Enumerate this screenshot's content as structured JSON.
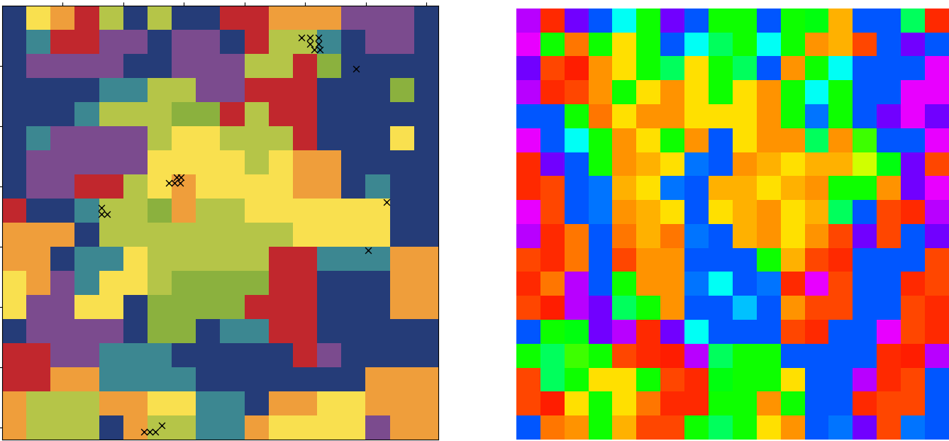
{
  "chart_data": [
    {
      "type": "categorical_heatmap",
      "colors": [
        "#253c78",
        "#7b4b8e",
        "#3c8791",
        "#b5c548",
        "#8bb13e",
        "#f9e04f",
        "#ef9e3b",
        "#c1272d"
      ],
      "cells": [
        [
          0,
          5,
          6,
          7,
          3,
          0,
          3,
          0,
          0,
          7,
          7,
          6,
          6,
          6,
          1,
          1,
          1,
          0
        ],
        [
          0,
          2,
          7,
          7,
          1,
          1,
          0,
          1,
          1,
          0,
          7,
          3,
          3,
          2,
          0,
          1,
          1,
          0
        ],
        [
          0,
          1,
          1,
          1,
          1,
          0,
          0,
          1,
          1,
          1,
          3,
          3,
          7,
          4,
          0,
          0,
          0,
          0
        ],
        [
          0,
          0,
          0,
          0,
          2,
          2,
          3,
          3,
          1,
          1,
          7,
          7,
          7,
          0,
          0,
          0,
          4,
          0
        ],
        [
          0,
          0,
          0,
          2,
          3,
          3,
          3,
          4,
          4,
          7,
          3,
          7,
          7,
          0,
          0,
          0,
          0,
          0
        ],
        [
          0,
          2,
          1,
          1,
          1,
          1,
          3,
          5,
          5,
          3,
          3,
          3,
          7,
          0,
          0,
          0,
          5,
          0
        ],
        [
          0,
          1,
          1,
          1,
          1,
          1,
          5,
          5,
          5,
          5,
          3,
          5,
          6,
          6,
          0,
          0,
          0,
          0
        ],
        [
          0,
          1,
          1,
          7,
          7,
          3,
          5,
          6,
          5,
          5,
          5,
          5,
          6,
          6,
          0,
          2,
          0,
          0
        ],
        [
          7,
          0,
          0,
          2,
          3,
          3,
          4,
          6,
          3,
          3,
          5,
          5,
          5,
          5,
          5,
          5,
          0,
          0
        ],
        [
          6,
          6,
          6,
          0,
          3,
          3,
          3,
          3,
          3,
          3,
          3,
          3,
          5,
          5,
          5,
          5,
          0,
          0
        ],
        [
          6,
          6,
          0,
          2,
          2,
          5,
          3,
          3,
          3,
          3,
          3,
          7,
          7,
          2,
          2,
          2,
          6,
          6
        ],
        [
          5,
          6,
          1,
          2,
          5,
          5,
          3,
          4,
          4,
          4,
          4,
          7,
          7,
          0,
          0,
          0,
          6,
          6
        ],
        [
          5,
          1,
          1,
          5,
          5,
          0,
          4,
          4,
          4,
          4,
          7,
          7,
          7,
          0,
          0,
          0,
          6,
          6
        ],
        [
          0,
          1,
          1,
          1,
          1,
          0,
          4,
          4,
          0,
          2,
          2,
          7,
          7,
          0,
          0,
          0,
          0,
          0
        ],
        [
          7,
          7,
          1,
          1,
          2,
          2,
          2,
          0,
          0,
          0,
          0,
          0,
          7,
          1,
          0,
          0,
          0,
          0
        ],
        [
          7,
          7,
          6,
          6,
          2,
          2,
          2,
          2,
          0,
          0,
          0,
          0,
          0,
          0,
          0,
          6,
          6,
          6
        ],
        [
          6,
          3,
          3,
          3,
          6,
          6,
          5,
          5,
          2,
          2,
          0,
          6,
          6,
          5,
          5,
          6,
          6,
          6
        ],
        [
          6,
          3,
          3,
          3,
          0,
          6,
          3,
          3,
          2,
          2,
          6,
          5,
          5,
          5,
          5,
          1,
          6,
          6
        ]
      ],
      "markers": {
        "marker": "x",
        "color": "#000000",
        "x": [
          49.4,
          50.8,
          52.2,
          50.8,
          52.2,
          51.5,
          52.5,
          58.4,
          28.8,
          29.5,
          27.5,
          28.4,
          29.4,
          16.4,
          16.4,
          17.3,
          63.4,
          60.4,
          23.4,
          24.3,
          25.3,
          26.3
        ],
        "y": [
          5.3,
          5.3,
          5.3,
          6.4,
          6.4,
          7.3,
          7.3,
          10.5,
          28.5,
          28.5,
          29.4,
          29.4,
          29.4,
          33.5,
          34.6,
          34.6,
          32.6,
          40.6,
          70.7,
          70.7,
          70.7,
          69.7
        ]
      },
      "xlim": [
        0,
        72
      ],
      "ylim": [
        72,
        0
      ],
      "xticks": [
        10,
        20,
        30,
        40,
        50,
        60,
        70
      ],
      "yticks": [
        10,
        20,
        30,
        40,
        50,
        60,
        70
      ],
      "tick_labels": false
    },
    {
      "type": "heatmap",
      "value_range": [
        0,
        1
      ],
      "cells": [
        [
          0.8,
          0.03,
          0.75,
          0.62,
          0.5,
          0.33,
          0.75,
          0.62,
          0.33,
          0.33,
          0.62,
          0.33,
          0.35,
          0.12,
          0.62,
          0.62,
          0.4,
          0.03
        ],
        [
          0.83,
          0.33,
          0.08,
          0.33,
          0.15,
          0.33,
          0.62,
          0.5,
          0.4,
          0.33,
          0.5,
          0.33,
          0.1,
          0.12,
          0.05,
          0.62,
          0.75,
          0.62
        ],
        [
          0.75,
          0.05,
          0.02,
          0.1,
          0.15,
          0.33,
          0.4,
          0.15,
          0.33,
          0.4,
          0.62,
          0.1,
          0.33,
          0.5,
          0.62,
          0.62,
          0.62,
          0.83
        ],
        [
          0.8,
          0.03,
          0.05,
          0.1,
          0.33,
          0.15,
          0.1,
          0.15,
          0.33,
          0.15,
          0.1,
          0.33,
          0.5,
          0.33,
          0.62,
          0.62,
          0.83,
          0.83
        ],
        [
          0.62,
          0.62,
          0.33,
          0.08,
          0.15,
          0.1,
          0.1,
          0.15,
          0.15,
          0.15,
          0.1,
          0.33,
          0.6,
          0.33,
          0.62,
          0.75,
          0.83,
          0.75
        ],
        [
          0.83,
          0.62,
          0.5,
          0.33,
          0.1,
          0.15,
          0.33,
          0.1,
          0.62,
          0.15,
          0.1,
          0.1,
          0.4,
          0.1,
          0.3,
          0.62,
          0.62,
          0.83
        ],
        [
          0.03,
          0.75,
          0.62,
          0.33,
          0.1,
          0.12,
          0.15,
          0.6,
          0.62,
          0.1,
          0.12,
          0.15,
          0.12,
          0.12,
          0.2,
          0.35,
          0.75,
          0.05
        ],
        [
          0.03,
          0.05,
          0.62,
          0.6,
          0.12,
          0.15,
          0.6,
          0.62,
          0.12,
          0.12,
          0.15,
          0.12,
          0.1,
          0.33,
          0.33,
          0.1,
          0.75,
          0.83
        ],
        [
          0.83,
          0.05,
          0.62,
          0.6,
          0.1,
          0.12,
          0.15,
          0.62,
          0.15,
          0.12,
          0.1,
          0.15,
          0.12,
          0.4,
          0.62,
          0.05,
          0.03,
          0.8
        ],
        [
          0.8,
          0.03,
          0.08,
          0.62,
          0.08,
          0.12,
          0.08,
          0.6,
          0.62,
          0.12,
          0.1,
          0.15,
          0.1,
          0.05,
          0.75,
          0.05,
          0.62,
          0.75
        ],
        [
          0.05,
          0.03,
          0.08,
          0.62,
          0.05,
          0.1,
          0.1,
          0.62,
          0.62,
          0.62,
          0.33,
          0.12,
          0.05,
          0.03,
          0.62,
          0.62,
          0.62,
          0.05
        ],
        [
          0.03,
          0.08,
          0.8,
          0.62,
          0.33,
          0.1,
          0.1,
          0.6,
          0.5,
          0.62,
          0.6,
          0.03,
          0.83,
          0.05,
          0.62,
          0.62,
          0.03,
          0.05
        ],
        [
          0.05,
          0.02,
          0.8,
          0.75,
          0.4,
          0.33,
          0.1,
          0.62,
          0.62,
          0.55,
          0.62,
          0.1,
          0.05,
          0.05,
          0.62,
          0.62,
          0.05,
          0.03
        ],
        [
          0.62,
          0.33,
          0.35,
          0.75,
          0.8,
          0.03,
          0.75,
          0.5,
          0.62,
          0.62,
          0.62,
          0.05,
          0.03,
          0.62,
          0.62,
          0.83,
          0.05,
          0.03
        ],
        [
          0.33,
          0.4,
          0.3,
          0.33,
          0.05,
          0.03,
          0.02,
          0.8,
          0.4,
          0.33,
          0.33,
          0.62,
          0.62,
          0.62,
          0.62,
          0.03,
          0.02,
          0.8
        ],
        [
          0.05,
          0.4,
          0.33,
          0.15,
          0.15,
          0.33,
          0.05,
          0.03,
          0.35,
          0.33,
          0.33,
          0.15,
          0.62,
          0.62,
          0.8,
          0.03,
          0.05,
          0.62
        ],
        [
          0.05,
          0.02,
          0.15,
          0.33,
          0.15,
          0.08,
          0.03,
          0.03,
          0.33,
          0.33,
          0.1,
          0.33,
          0.62,
          0.62,
          0.03,
          0.05,
          0.05,
          0.62
        ],
        [
          0.62,
          0.08,
          0.1,
          0.33,
          0.12,
          0.05,
          0.05,
          0.33,
          0.4,
          0.33,
          0.15,
          0.1,
          0.62,
          0.6,
          0.75,
          0.05,
          0.6,
          0.62
        ]
      ],
      "tick_labels": false
    }
  ]
}
